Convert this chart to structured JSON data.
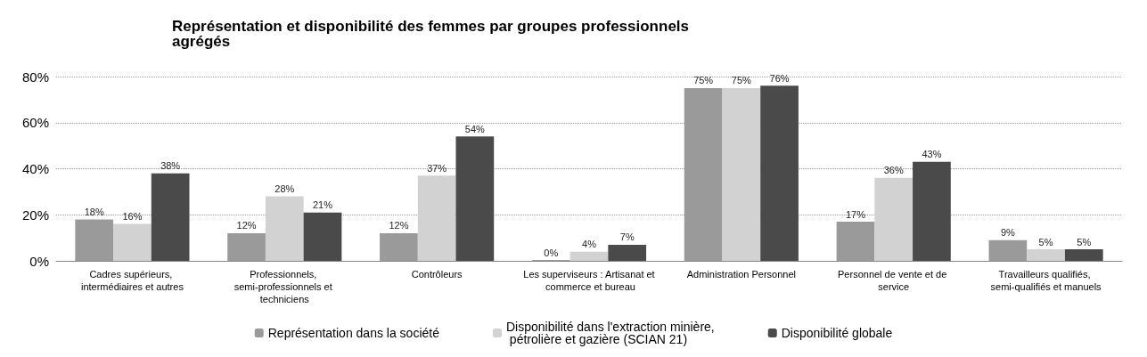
{
  "chart_data": {
    "type": "bar",
    "title": "Représentation et disponibilité des femmes par groupes professionnels agrégés",
    "categories": [
      "Cadres supérieurs, intermédiaires et autres",
      "Professionnels, semi-professionnels et techniciens",
      "Contrôleurs",
      "Les superviseurs : Artisanat et commerce et bureau",
      "Administration Personnel",
      "Personnel de vente et de service",
      "Travailleurs qualifiés, semi-qualifiés et manuels"
    ],
    "series": [
      {
        "name": "Représentation dans la société",
        "color": "#9a9a9a",
        "values": [
          18,
          12,
          12,
          0,
          75,
          17,
          9
        ],
        "value_labels": [
          "18%",
          "12%",
          "12%",
          "0%",
          "75%",
          "17%",
          "9%"
        ]
      },
      {
        "name": "Disponibilité dans l'extraction minière, pétrolière et gazière (SCIAN 21)",
        "color": "#d2d2d2",
        "values": [
          16,
          28,
          37,
          4,
          75,
          36,
          5
        ],
        "value_labels": [
          "16%",
          "28%",
          "37%",
          "4%",
          "75%",
          "36%",
          "5%"
        ]
      },
      {
        "name": "Disponibilité globale",
        "color": "#4a4a4a",
        "values": [
          38,
          21,
          54,
          7,
          76,
          43,
          5
        ],
        "value_labels": [
          "38%",
          "21%",
          "54%",
          "7%",
          "76%",
          "43%",
          "5%"
        ]
      }
    ],
    "ylim": [
      0,
      80
    ],
    "yticks": [
      {
        "value": 0,
        "label": "0%"
      },
      {
        "value": 20,
        "label": "20%"
      },
      {
        "value": 40,
        "label": "40%"
      },
      {
        "value": 60,
        "label": "60%"
      },
      {
        "value": 80,
        "label": "80%"
      }
    ],
    "grid": "y",
    "legend": "bottom"
  }
}
